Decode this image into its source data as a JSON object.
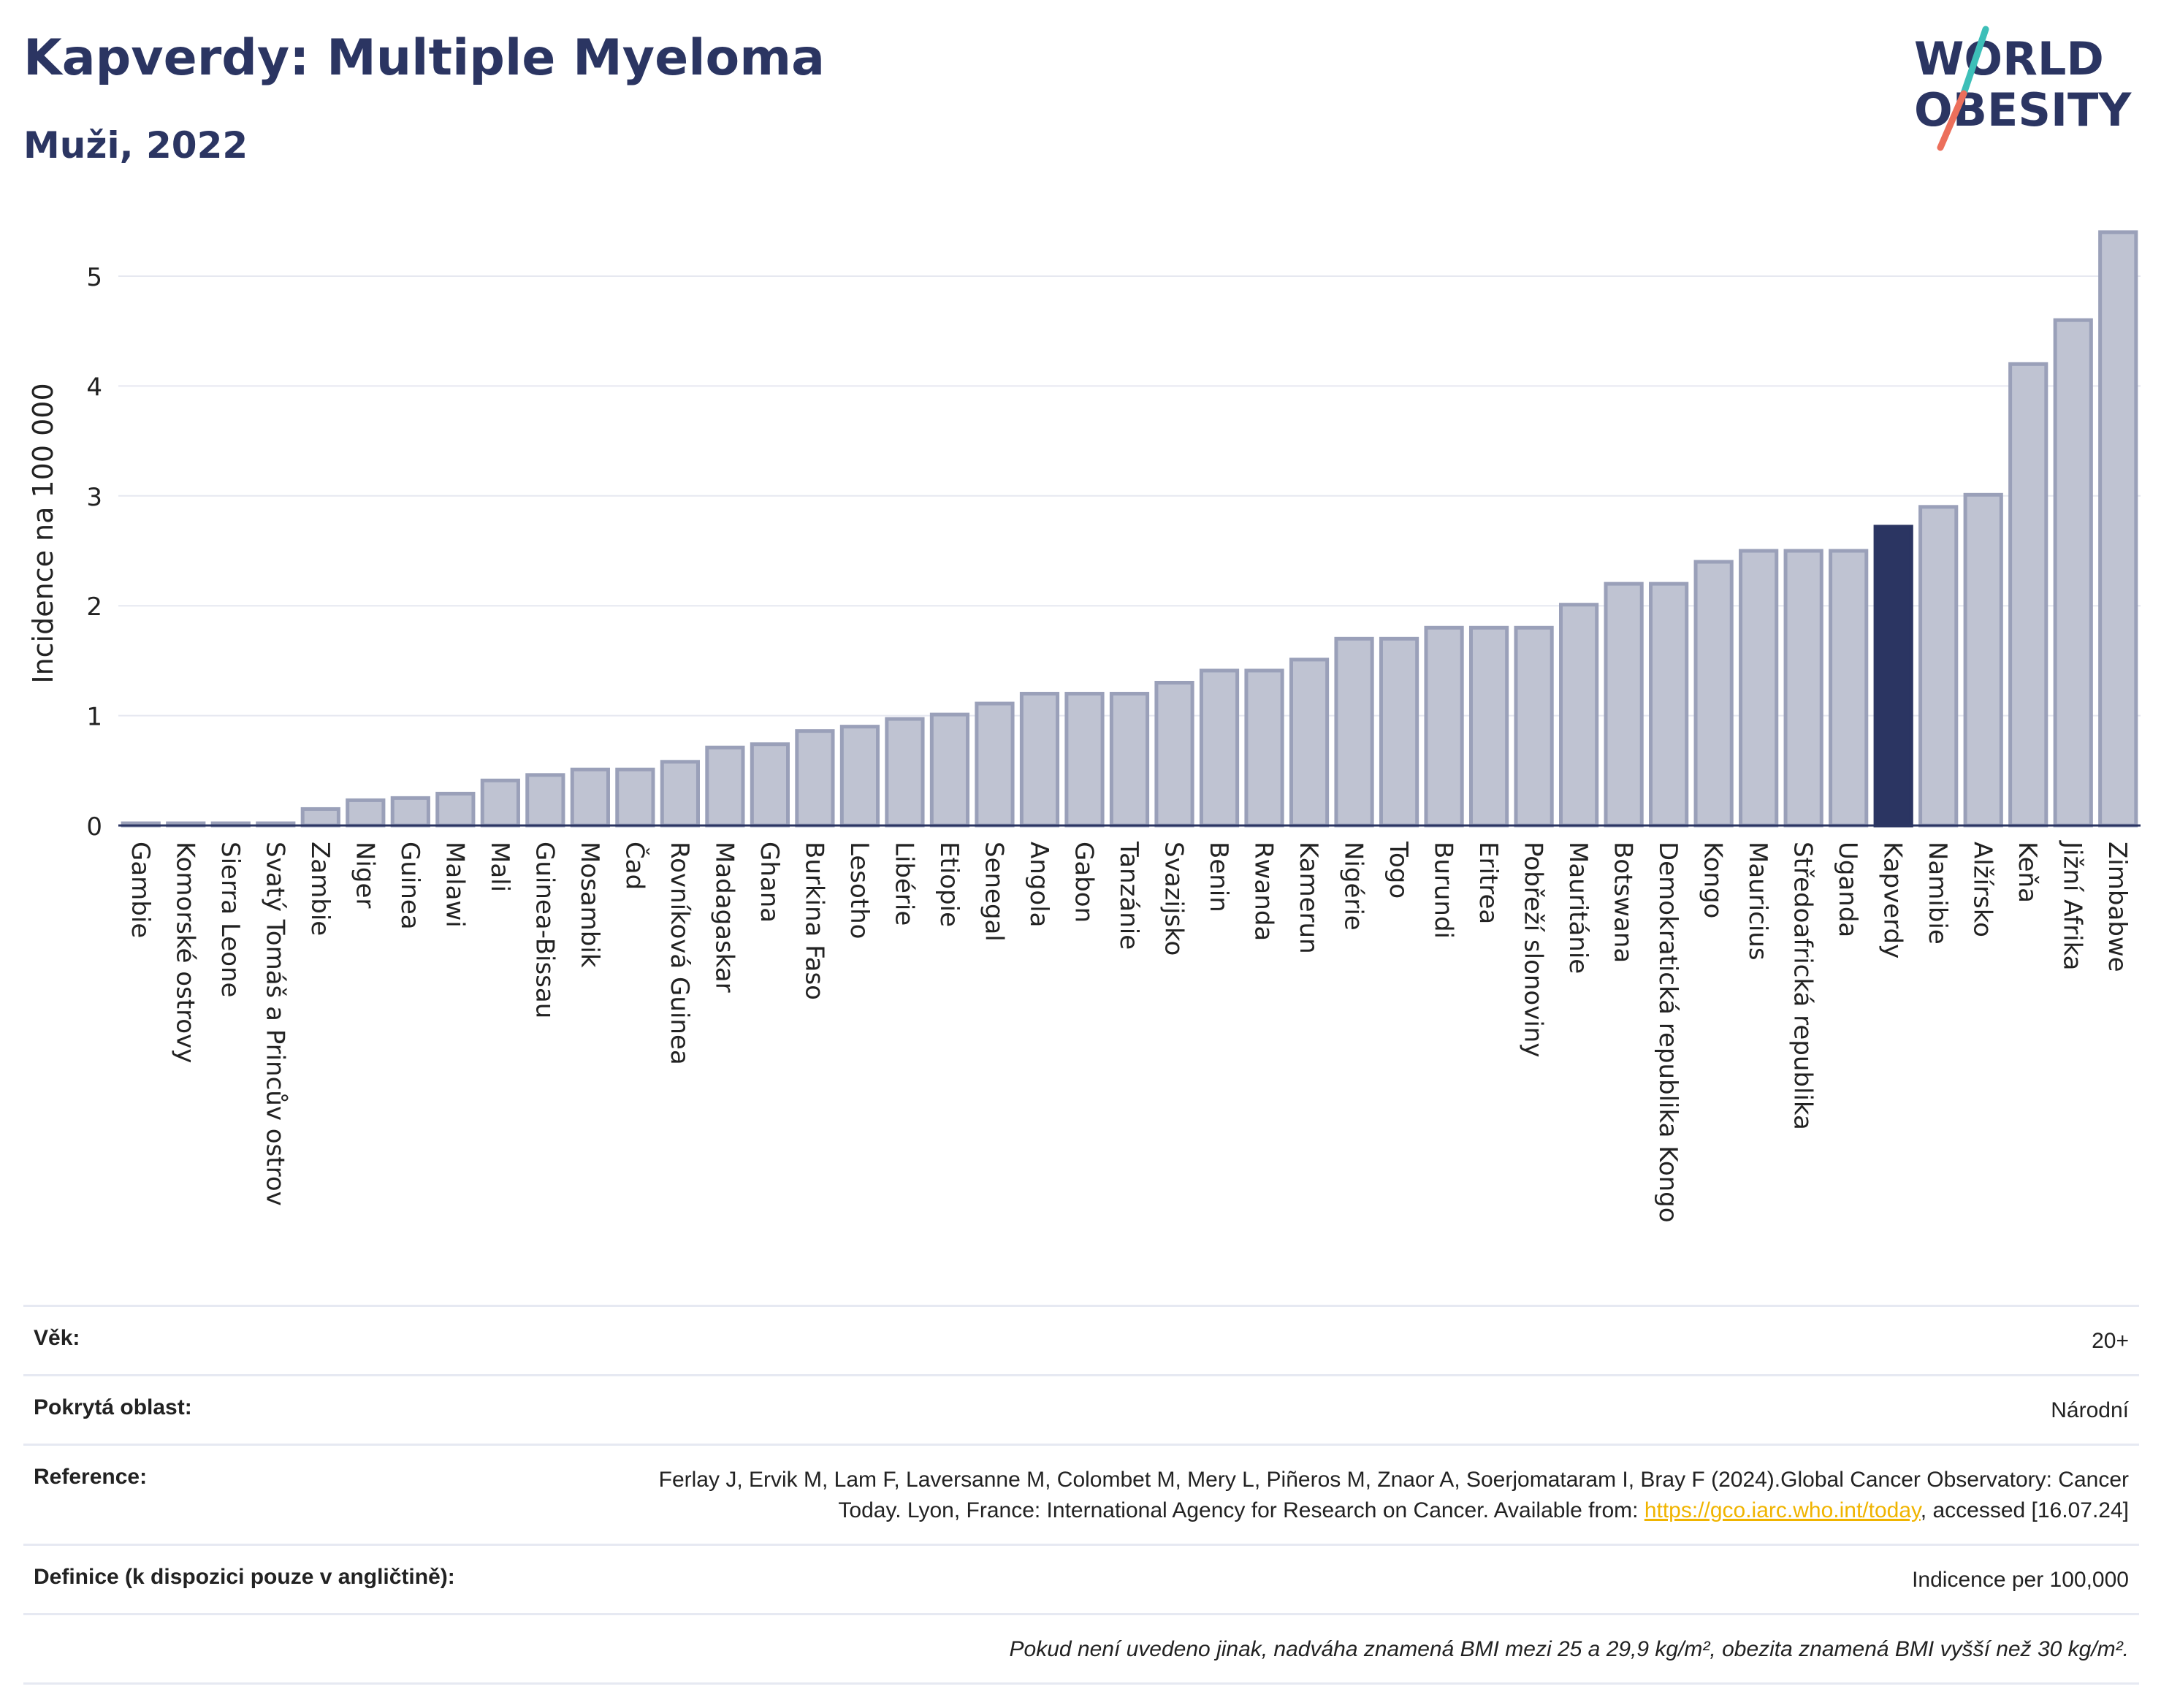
{
  "header": {
    "title": "Kapverdy: Multiple Myeloma",
    "subtitle": "Muži, 2022",
    "logo_line1": "WORLD",
    "logo_line2": "OBESITY"
  },
  "colors": {
    "title": "#2b3562",
    "bar_default": "#bfc3d2",
    "bar_default_outline": "#9aa0b9",
    "bar_highlight": "#2b3562",
    "logo_teal": "#3dbfb8",
    "logo_coral": "#ec6f5b",
    "link": "#f0b400"
  },
  "chart_data": {
    "type": "bar",
    "title": "Kapverdy: Multiple Myeloma",
    "subtitle": "Muži, 2022",
    "xlabel": "",
    "ylabel": "Incidence na 100 000",
    "ylim": [
      0,
      5.45
    ],
    "yticks": [
      0,
      1,
      2,
      3,
      4,
      5
    ],
    "grid": true,
    "highlight": "Kapverdy",
    "categories": [
      "Gambie",
      "Komorské ostrovy",
      "Sierra Leone",
      "Svatý Tomáš a Princův ostrov",
      "Zambie",
      "Niger",
      "Guinea",
      "Malawi",
      "Mali",
      "Guinea-Bissau",
      "Mosambik",
      "Čad",
      "Rovníková Guinea",
      "Madagaskar",
      "Ghana",
      "Burkina Faso",
      "Lesotho",
      "Libérie",
      "Etiopie",
      "Senegal",
      "Angola",
      "Gabon",
      "Tanzánie",
      "Svazijsko",
      "Benin",
      "Rwanda",
      "Kamerun",
      "Nigérie",
      "Togo",
      "Burundi",
      "Eritrea",
      "Pobřeží slonoviny",
      "Mauritánie",
      "Botswana",
      "Demokratická republika Kongo",
      "Kongo",
      "Mauricius",
      "Středoafrická republika",
      "Uganda",
      "Kapverdy",
      "Namibie",
      "Alžírsko",
      "Keňa",
      "Jižní Afrika",
      "Zimbabwe"
    ],
    "values": [
      0.02,
      0.02,
      0.02,
      0.02,
      0.15,
      0.23,
      0.25,
      0.29,
      0.41,
      0.46,
      0.51,
      0.51,
      0.58,
      0.71,
      0.74,
      0.86,
      0.9,
      0.97,
      1.01,
      1.11,
      1.2,
      1.2,
      1.2,
      1.3,
      1.41,
      1.41,
      1.51,
      1.7,
      1.7,
      1.8,
      1.8,
      1.8,
      2.01,
      2.2,
      2.2,
      2.4,
      2.5,
      2.5,
      2.5,
      2.72,
      2.9,
      3.01,
      4.2,
      4.6,
      5.4
    ]
  },
  "info": {
    "age_label": "Věk:",
    "age_value": "20+",
    "area_label": "Pokrytá oblast:",
    "area_value": "Národní",
    "reference_label": "Reference:",
    "reference_text": "Ferlay J, Ervik M, Lam F, Laversanne M, Colombet M, Mery L, Piñeros M, Znaor A, Soerjomataram I, Bray F (2024).Global Cancer Observatory: Cancer Today. Lyon, France: International Agency for Research on Cancer. Available from:",
    "reference_link": "https://gco.iarc.who.int/today",
    "reference_suffix": ", accessed [16.07.24]",
    "definition_label": "Definice (k dispozici pouze v angličtině):",
    "definition_value": "Indicence per 100,000",
    "note": "Pokud není uvedeno jinak, nadváha znamená BMI mezi 25 a 29,9 kg/m², obezita znamená BMI vyšší než 30 kg/m²."
  }
}
